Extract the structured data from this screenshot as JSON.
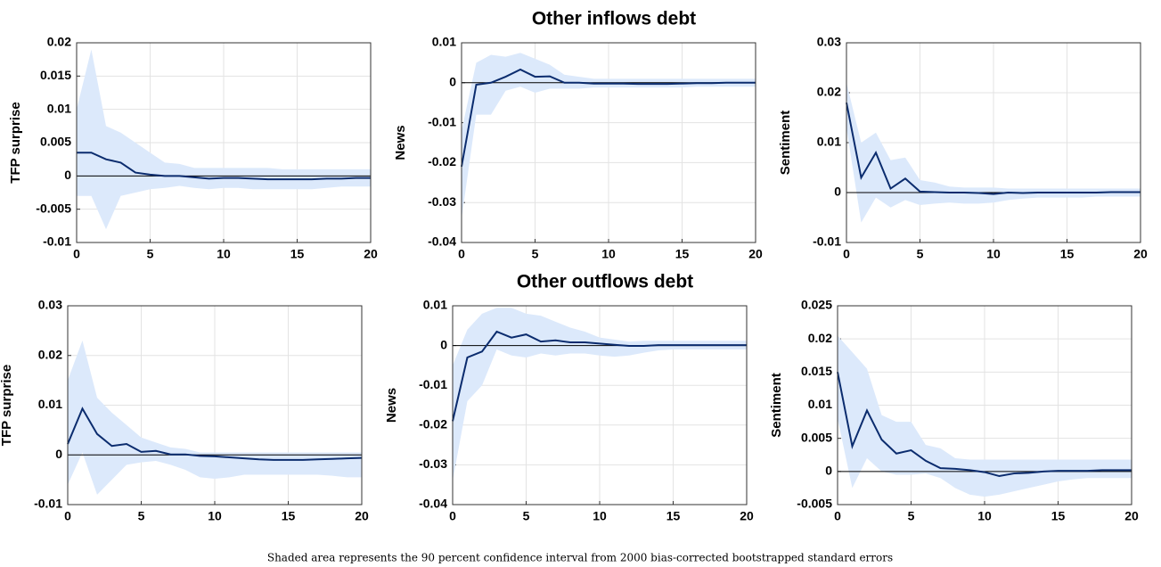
{
  "footnote": "Shaded area represents the 90 percent confidence interval from 2000 bias-corrected bootstrapped standard errors",
  "chart_data": [
    {
      "type": "line",
      "ylabel": "TFP surprise",
      "x": [
        0,
        1,
        2,
        3,
        4,
        5,
        6,
        7,
        8,
        9,
        10,
        11,
        12,
        13,
        14,
        15,
        16,
        17,
        18,
        19,
        20
      ],
      "xlim": [
        0,
        20
      ],
      "xticks": [
        0,
        5,
        10,
        15,
        20
      ],
      "ylim": [
        -0.01,
        0.02
      ],
      "yticks": [
        -0.01,
        -0.005,
        0,
        0.005,
        0.01,
        0.015,
        0.02
      ],
      "grid": true,
      "color": "#0b2c6e",
      "band_color": "#dce9fb",
      "values": [
        0.0035,
        0.0035,
        0.0025,
        0.002,
        0.0005,
        0.0002,
        0,
        0,
        -0.0002,
        -0.0004,
        -0.0003,
        -0.0003,
        -0.0004,
        -0.0005,
        -0.0005,
        -0.0005,
        -0.0005,
        -0.0004,
        -0.0004,
        -0.0003,
        -0.0003
      ],
      "upper": [
        0.01,
        0.019,
        0.0075,
        0.0065,
        0.005,
        0.0035,
        0.002,
        0.0018,
        0.0012,
        0.0012,
        0.0012,
        0.0012,
        0.0012,
        0.0012,
        0.001,
        0.001,
        0.001,
        0.001,
        0.001,
        0.001,
        0.001
      ],
      "lower": [
        -0.003,
        -0.003,
        -0.008,
        -0.003,
        -0.0025,
        -0.002,
        -0.0018,
        -0.0015,
        -0.0018,
        -0.002,
        -0.0018,
        -0.0018,
        -0.002,
        -0.002,
        -0.002,
        -0.002,
        -0.002,
        -0.0018,
        -0.0016,
        -0.0016,
        -0.0016
      ]
    },
    {
      "type": "line",
      "title": "Other inflows debt",
      "ylabel": "News",
      "x": [
        0,
        1,
        2,
        3,
        4,
        5,
        6,
        7,
        8,
        9,
        10,
        11,
        12,
        13,
        14,
        15,
        16,
        17,
        18,
        19,
        20
      ],
      "xlim": [
        0,
        20
      ],
      "xticks": [
        0,
        5,
        10,
        15,
        20
      ],
      "ylim": [
        -0.04,
        0.01
      ],
      "yticks": [
        -0.04,
        -0.03,
        -0.02,
        -0.01,
        0,
        0.01
      ],
      "grid": true,
      "color": "#0b2c6e",
      "band_color": "#dce9fb",
      "values": [
        -0.021,
        -0.0005,
        0,
        0.0015,
        0.0033,
        0.0015,
        0.0016,
        0,
        0,
        -0.0002,
        -0.0002,
        -0.0002,
        -0.0003,
        -0.0003,
        -0.0003,
        -0.0002,
        -0.0001,
        -0.0001,
        0,
        0,
        0
      ],
      "upper": [
        -0.012,
        0.005,
        0.007,
        0.0065,
        0.0075,
        0.006,
        0.0045,
        0.002,
        0.0015,
        0.001,
        0.001,
        0.001,
        0.001,
        0.001,
        0.001,
        0.001,
        0.001,
        0.001,
        0.001,
        0.001,
        0.001
      ],
      "lower": [
        -0.034,
        -0.008,
        -0.008,
        -0.002,
        -0.001,
        -0.0025,
        -0.0015,
        -0.0015,
        -0.0015,
        -0.0012,
        -0.0012,
        -0.0012,
        -0.0012,
        -0.0012,
        -0.0012,
        -0.0012,
        -0.001,
        -0.001,
        -0.001,
        -0.001,
        -0.001
      ]
    },
    {
      "type": "line",
      "ylabel": "Sentiment",
      "x": [
        0,
        1,
        2,
        3,
        4,
        5,
        6,
        7,
        8,
        9,
        10,
        11,
        12,
        13,
        14,
        15,
        16,
        17,
        18,
        19,
        20
      ],
      "xlim": [
        0,
        20
      ],
      "xticks": [
        0,
        5,
        10,
        15,
        20
      ],
      "ylim": [
        -0.01,
        0.03
      ],
      "yticks": [
        -0.01,
        0,
        0.01,
        0.02,
        0.03
      ],
      "grid": true,
      "color": "#0b2c6e",
      "band_color": "#dce9fb",
      "values": [
        0.018,
        0.003,
        0.008,
        0.0008,
        0.0028,
        0.0002,
        0.0001,
        0,
        0,
        -0.0001,
        -0.0003,
        0,
        -0.0001,
        0,
        0,
        0,
        0,
        0,
        0.0001,
        0.0001,
        0.0001
      ],
      "upper": [
        0.022,
        0.01,
        0.012,
        0.0065,
        0.007,
        0.0025,
        0.002,
        0.0012,
        0.001,
        0.001,
        0.001,
        0.0008,
        0.0008,
        0.0008,
        0.0008,
        0.0008,
        0.0008,
        0.0008,
        0.0008,
        0.0008,
        0.0008
      ],
      "lower": [
        0.013,
        -0.006,
        -0.001,
        -0.003,
        -0.0015,
        -0.0025,
        -0.0022,
        -0.002,
        -0.0022,
        -0.0022,
        -0.002,
        -0.0015,
        -0.0012,
        -0.001,
        -0.001,
        -0.001,
        -0.001,
        -0.0008,
        -0.0008,
        -0.0008,
        -0.0008
      ]
    },
    {
      "type": "line",
      "ylabel": "TFP surprise",
      "x": [
        0,
        1,
        2,
        3,
        4,
        5,
        6,
        7,
        8,
        9,
        10,
        11,
        12,
        13,
        14,
        15,
        16,
        17,
        18,
        19,
        20
      ],
      "xlim": [
        0,
        20
      ],
      "xticks": [
        0,
        5,
        10,
        15,
        20
      ],
      "ylim": [
        -0.01,
        0.03
      ],
      "yticks": [
        -0.01,
        0,
        0.01,
        0.02,
        0.03
      ],
      "grid": true,
      "color": "#0b2c6e",
      "band_color": "#dce9fb",
      "values": [
        0.0022,
        0.0093,
        0.0042,
        0.0018,
        0.0022,
        0.0006,
        0.0008,
        0.0001,
        0.0001,
        -0.0002,
        -0.0003,
        -0.0005,
        -0.0007,
        -0.0009,
        -0.001,
        -0.001,
        -0.001,
        -0.0009,
        -0.0008,
        -0.0007,
        -0.0006
      ],
      "upper": [
        0.015,
        0.023,
        0.0115,
        0.0085,
        0.006,
        0.0035,
        0.0025,
        0.0015,
        0.0012,
        0.0005,
        0.0005,
        0.0005,
        0.0005,
        0.0005,
        0.0005,
        0.0005,
        0.0005,
        0.0005,
        0.0005,
        0.0005,
        0.0005
      ],
      "lower": [
        -0.006,
        0.0005,
        -0.008,
        -0.005,
        -0.002,
        -0.0015,
        -0.0012,
        -0.002,
        -0.003,
        -0.0045,
        -0.0048,
        -0.0045,
        -0.004,
        -0.004,
        -0.004,
        -0.004,
        -0.004,
        -0.004,
        -0.0042,
        -0.0045,
        -0.0045
      ]
    },
    {
      "type": "line",
      "title": "Other outflows debt",
      "ylabel": "News",
      "x": [
        0,
        1,
        2,
        3,
        4,
        5,
        6,
        7,
        8,
        9,
        10,
        11,
        12,
        13,
        14,
        15,
        16,
        17,
        18,
        19,
        20
      ],
      "xlim": [
        0,
        20
      ],
      "xticks": [
        0,
        5,
        10,
        15,
        20
      ],
      "ylim": [
        -0.04,
        0.01
      ],
      "yticks": [
        -0.04,
        -0.03,
        -0.02,
        -0.01,
        0,
        0.01
      ],
      "grid": true,
      "color": "#0b2c6e",
      "band_color": "#dce9fb",
      "values": [
        -0.019,
        -0.003,
        -0.0015,
        0.0035,
        0.002,
        0.0028,
        0.001,
        0.0013,
        0.0008,
        0.0008,
        0.0005,
        0.0002,
        -0.0001,
        -0.0001,
        0.0001,
        0.0001,
        0.0001,
        0.0001,
        0.0001,
        0.0001,
        0.0001
      ],
      "upper": [
        -0.005,
        0.004,
        0.008,
        0.0095,
        0.0095,
        0.008,
        0.0075,
        0.006,
        0.0045,
        0.0035,
        0.002,
        0.0015,
        0.001,
        0.0012,
        0.0012,
        0.0012,
        0.0012,
        0.0012,
        0.0012,
        0.0012,
        0.0012
      ],
      "lower": [
        -0.034,
        -0.014,
        -0.01,
        -0.001,
        -0.0025,
        -0.003,
        -0.002,
        -0.0025,
        -0.002,
        -0.002,
        -0.0025,
        -0.0028,
        -0.0025,
        -0.0018,
        -0.0012,
        -0.001,
        -0.001,
        -0.001,
        -0.001,
        -0.001,
        -0.001
      ]
    },
    {
      "type": "line",
      "ylabel": "Sentiment",
      "x": [
        0,
        1,
        2,
        3,
        4,
        5,
        6,
        7,
        8,
        9,
        10,
        11,
        12,
        13,
        14,
        15,
        16,
        17,
        18,
        19,
        20
      ],
      "xlim": [
        0,
        20
      ],
      "xticks": [
        0,
        5,
        10,
        15,
        20
      ],
      "ylim": [
        -0.005,
        0.025
      ],
      "yticks": [
        -0.005,
        0,
        0.005,
        0.01,
        0.015,
        0.02,
        0.025
      ],
      "grid": true,
      "color": "#0b2c6e",
      "band_color": "#dce9fb",
      "values": [
        0.015,
        0.0038,
        0.0092,
        0.0048,
        0.0027,
        0.0032,
        0.0016,
        0.0005,
        0.0004,
        0.0002,
        -0.0001,
        -0.0007,
        -0.0003,
        -0.0002,
        0,
        0.0001,
        0.0001,
        0.0001,
        0.0002,
        0.0002,
        0.0002
      ],
      "upper": [
        0.0205,
        0.018,
        0.0155,
        0.0085,
        0.0075,
        0.0075,
        0.004,
        0.0035,
        0.002,
        0.0018,
        0.0018,
        0.0018,
        0.0018,
        0.0018,
        0.0018,
        0.0018,
        0.0018,
        0.0018,
        0.0018,
        0.0018,
        0.0018
      ],
      "lower": [
        0.008,
        -0.0025,
        0.002,
        0,
        -0.0005,
        -0.0005,
        -0.0003,
        -0.001,
        -0.0025,
        -0.0035,
        -0.0038,
        -0.0035,
        -0.003,
        -0.0025,
        -0.002,
        -0.0015,
        -0.0012,
        -0.001,
        -0.001,
        -0.001,
        -0.001
      ]
    }
  ]
}
